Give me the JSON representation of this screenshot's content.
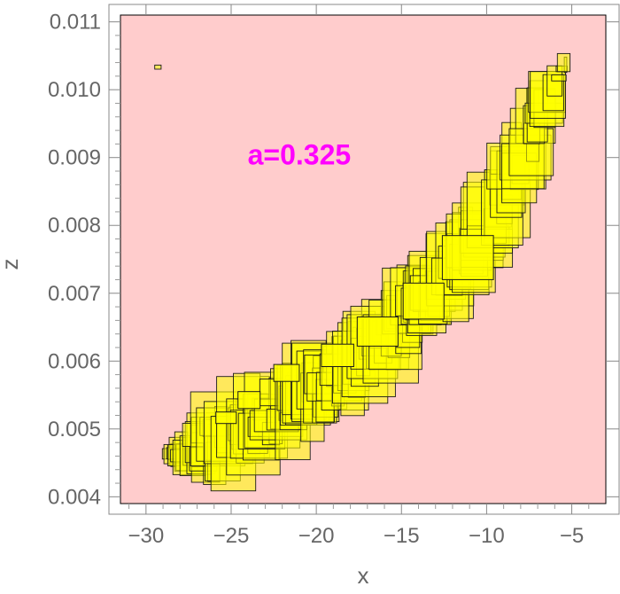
{
  "chart_data": {
    "type": "scatter",
    "title": "",
    "xlabel": "x",
    "ylabel": "z",
    "xlim": [
      -31.5,
      -3.0
    ],
    "ylim": [
      0.0039,
      0.0111
    ],
    "x_ticks": [
      -30,
      -25,
      -20,
      -15,
      -10,
      -5
    ],
    "x_tick_labels": [
      "−30",
      "−25",
      "−20",
      "−15",
      "−10",
      "−5"
    ],
    "y_ticks": [
      0.004,
      0.005,
      0.006,
      0.007,
      0.008,
      0.009,
      0.01,
      0.011
    ],
    "y_tick_labels": [
      "0.004",
      "0.005",
      "0.006",
      "0.007",
      "0.008",
      "0.009",
      "0.010",
      "0.011"
    ],
    "annotation": {
      "text": "a=0.325",
      "x": -21.0,
      "z": 0.0089
    },
    "region_centerline": [
      [
        -29.0,
        0.00458
      ],
      [
        -25.0,
        0.00485
      ],
      [
        -20.0,
        0.00555
      ],
      [
        -15.0,
        0.00655
      ],
      [
        -10.0,
        0.0079
      ],
      [
        -5.5,
        0.01035
      ]
    ],
    "highlight_boxes": [
      {
        "x": [
          -22.5,
          -21.0
        ],
        "z": [
          0.0057,
          0.00595
        ]
      },
      {
        "x": [
          -19.7,
          -17.8
        ],
        "z": [
          0.00592,
          0.00625
        ]
      },
      {
        "x": [
          -17.6,
          -15.2
        ],
        "z": [
          0.00622,
          0.00665
        ]
      },
      {
        "x": [
          -14.9,
          -12.5
        ],
        "z": [
          0.00662,
          0.00715
        ]
      },
      {
        "x": [
          -12.6,
          -9.6
        ],
        "z": [
          0.0072,
          0.00785
        ]
      },
      {
        "x": [
          -25.9,
          -24.7
        ],
        "z": [
          0.00508,
          0.00525
        ]
      },
      {
        "x": [
          -24.6,
          -23.3
        ],
        "z": [
          0.0053,
          0.00555
        ]
      }
    ],
    "colors": {
      "plot_background": "#ffcccc",
      "box_fill": "#ffff00",
      "box_stroke": "#1a1a1a",
      "annotation": "#ff00ff",
      "axis_text": "#666666"
    },
    "grid": false,
    "legend": "none"
  }
}
